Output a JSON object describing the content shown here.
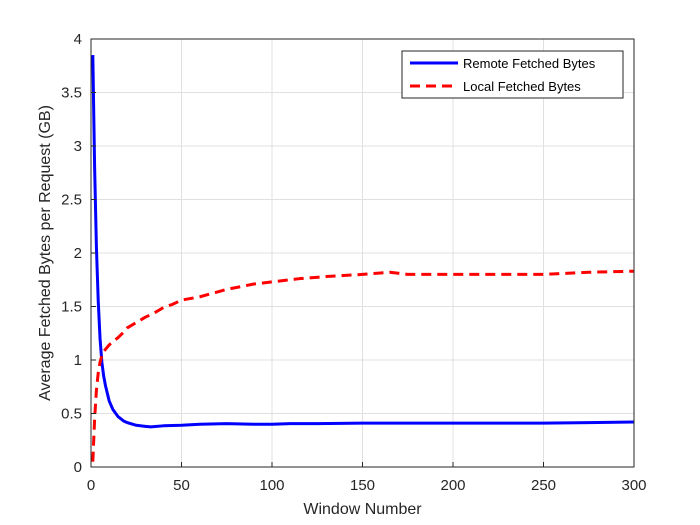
{
  "chart_data": {
    "type": "line",
    "title": "",
    "xlabel": "Window Number",
    "ylabel": "Average Fetched Bytes per Request (GB)",
    "xlim": [
      0,
      300
    ],
    "ylim": [
      0,
      4
    ],
    "xticks": [
      0,
      50,
      100,
      150,
      200,
      250,
      300
    ],
    "yticks": [
      0,
      0.5,
      1,
      1.5,
      2,
      2.5,
      3,
      3.5,
      4
    ],
    "xtick_labels": [
      "0",
      "50",
      "100",
      "150",
      "200",
      "250",
      "300"
    ],
    "ytick_labels": [
      "0",
      "0.5",
      "1",
      "1.5",
      "2",
      "2.5",
      "3",
      "3.5",
      "4"
    ],
    "grid": true,
    "legend_position": "top-right",
    "series": [
      {
        "name": "Remote Fetched Bytes",
        "color": "#0000FF",
        "style": "solid",
        "x": [
          1,
          2,
          3,
          4,
          5,
          6,
          7,
          8,
          10,
          12,
          15,
          18,
          20,
          25,
          30,
          33,
          40,
          50,
          60,
          75,
          90,
          100,
          110,
          125,
          150,
          175,
          200,
          225,
          250,
          275,
          300
        ],
        "y": [
          3.85,
          2.8,
          2.05,
          1.55,
          1.2,
          0.98,
          0.85,
          0.76,
          0.62,
          0.54,
          0.47,
          0.43,
          0.415,
          0.39,
          0.38,
          0.375,
          0.385,
          0.39,
          0.4,
          0.405,
          0.4,
          0.4,
          0.405,
          0.405,
          0.41,
          0.41,
          0.41,
          0.41,
          0.41,
          0.415,
          0.42
        ]
      },
      {
        "name": "Local Fetched Bytes",
        "color": "#FF0000",
        "style": "dashed",
        "x": [
          1,
          2,
          3,
          4,
          5,
          6,
          7,
          8,
          10,
          12,
          15,
          18,
          20,
          25,
          30,
          35,
          40,
          45,
          50,
          60,
          75,
          90,
          100,
          115,
          130,
          150,
          165,
          175,
          200,
          225,
          250,
          275,
          300
        ],
        "y": [
          0.05,
          0.45,
          0.72,
          0.88,
          0.98,
          1.04,
          1.08,
          1.1,
          1.14,
          1.17,
          1.21,
          1.26,
          1.3,
          1.35,
          1.4,
          1.44,
          1.49,
          1.52,
          1.56,
          1.59,
          1.66,
          1.71,
          1.73,
          1.76,
          1.78,
          1.8,
          1.82,
          1.8,
          1.8,
          1.8,
          1.8,
          1.82,
          1.83
        ]
      }
    ]
  }
}
